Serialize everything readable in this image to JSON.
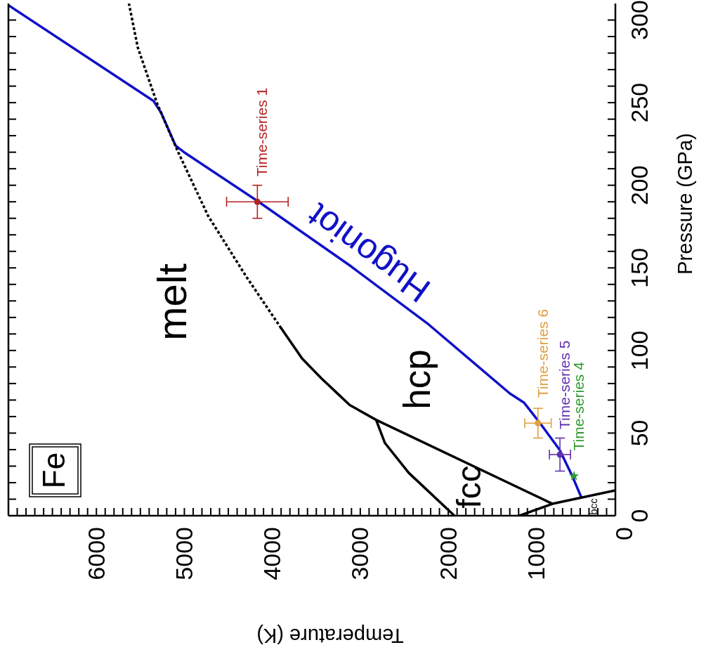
{
  "chart_data": {
    "type": "line",
    "title": "Fe",
    "xlabel": "Temperature (K)",
    "ylabel": "Pressure (GPa)",
    "xlim": [
      6900,
      0
    ],
    "ylim": [
      0,
      310
    ],
    "xticks": [
      0,
      {
        "value": 100,
        "label": null
      },
      {
        "value": 200,
        "label": null
      },
      {
        "value": 300,
        "label": null
      },
      {
        "value": 400,
        "label": null
      },
      {
        "value": 500,
        "label": null
      },
      {
        "value": 600,
        "label": null
      },
      {
        "value": 700,
        "label": null
      },
      {
        "value": 800,
        "label": null
      },
      {
        "value": 900,
        "label": null
      },
      1000,
      {
        "value": 1100,
        "label": null
      },
      {
        "value": 1200,
        "label": null
      },
      {
        "value": 1300,
        "label": null
      },
      {
        "value": 1400,
        "label": null
      },
      {
        "value": 1500,
        "label": null
      },
      {
        "value": 1600,
        "label": null
      },
      {
        "value": 1700,
        "label": null
      },
      {
        "value": 1800,
        "label": null
      },
      {
        "value": 1900,
        "label": null
      },
      2000,
      {
        "value": 2100,
        "label": null
      },
      {
        "value": 2200,
        "label": null
      },
      {
        "value": 2300,
        "label": null
      },
      {
        "value": 2400,
        "label": null
      },
      {
        "value": 2500,
        "label": null
      },
      {
        "value": 2600,
        "label": null
      },
      {
        "value": 2700,
        "label": null
      },
      {
        "value": 2800,
        "label": null
      },
      {
        "value": 2900,
        "label": null
      },
      3000,
      {
        "value": 3100,
        "label": null
      },
      {
        "value": 3200,
        "label": null
      },
      {
        "value": 3300,
        "label": null
      },
      {
        "value": 3400,
        "label": null
      },
      {
        "value": 3500,
        "label": null
      },
      {
        "value": 3600,
        "label": null
      },
      {
        "value": 3700,
        "label": null
      },
      {
        "value": 3800,
        "label": null
      },
      {
        "value": 3900,
        "label": null
      },
      4000,
      {
        "value": 4100,
        "label": null
      },
      {
        "value": 4200,
        "label": null
      },
      {
        "value": 4300,
        "label": null
      },
      {
        "value": 4400,
        "label": null
      },
      {
        "value": 4500,
        "label": null
      },
      {
        "value": 4600,
        "label": null
      },
      {
        "value": 4700,
        "label": null
      },
      {
        "value": 4800,
        "label": null
      },
      {
        "value": 4900,
        "label": null
      },
      5000,
      {
        "value": 5100,
        "label": null
      },
      {
        "value": 5200,
        "label": null
      },
      {
        "value": 5300,
        "label": null
      },
      {
        "value": 5400,
        "label": null
      },
      {
        "value": 5500,
        "label": null
      },
      {
        "value": 5600,
        "label": null
      },
      {
        "value": 5700,
        "label": null
      },
      {
        "value": 5800,
        "label": null
      },
      {
        "value": 5900,
        "label": null
      },
      6000,
      {
        "value": 6100,
        "label": null
      },
      {
        "value": 6200,
        "label": null
      },
      {
        "value": 6300,
        "label": null
      },
      {
        "value": 6400,
        "label": null
      },
      {
        "value": 6500,
        "label": null
      },
      {
        "value": 6600,
        "label": null
      },
      {
        "value": 6700,
        "label": null
      },
      {
        "value": 6800,
        "label": null
      }
    ],
    "yticks": [
      0,
      {
        "value": 10,
        "label": null
      },
      {
        "value": 20,
        "label": null
      },
      {
        "value": 30,
        "label": null
      },
      {
        "value": 40,
        "label": null
      },
      50,
      {
        "value": 60,
        "label": null
      },
      {
        "value": 70,
        "label": null
      },
      {
        "value": 80,
        "label": null
      },
      {
        "value": 90,
        "label": null
      },
      100,
      {
        "value": 110,
        "label": null
      },
      {
        "value": 120,
        "label": null
      },
      {
        "value": 130,
        "label": null
      },
      {
        "value": 140,
        "label": null
      },
      150,
      {
        "value": 160,
        "label": null
      },
      {
        "value": 170,
        "label": null
      },
      {
        "value": 180,
        "label": null
      },
      {
        "value": 190,
        "label": null
      },
      200,
      {
        "value": 210,
        "label": null
      },
      {
        "value": 220,
        "label": null
      },
      {
        "value": 230,
        "label": null
      },
      {
        "value": 240,
        "label": null
      },
      250,
      {
        "value": 260,
        "label": null
      },
      {
        "value": 270,
        "label": null
      },
      {
        "value": 280,
        "label": null
      },
      {
        "value": 290,
        "label": null
      },
      300
    ],
    "grid": false,
    "legend": false,
    "marker": "none",
    "line_style": "solid",
    "annotations": [
      "melt",
      "hcp",
      "fcc",
      "bcc"
    ],
    "series": [
      {
        "name": "Hugoniot",
        "type": "line",
        "color": "#1010c8",
        "x": [
          390,
          490,
          635,
          870,
          1040,
          1200,
          2140,
          3020,
          4070,
          4890,
          5000,
          5165,
          5250,
          6900
        ],
        "values": [
          11.5,
          24,
          40,
          57,
          68.5,
          74,
          116.5,
          151.5,
          190.5,
          219.5,
          224,
          244,
          251,
          309
        ]
      },
      {
        "type": "line",
        "color": "#000000",
        "x": [
          1830,
          2350,
          2620,
          2720,
          3020,
          3180,
          3340,
          3560,
          3800,
          null,
          2720,
          715,
          0,
          null,
          1090,
          715
        ],
        "values": [
          0,
          26,
          44,
          58,
          67,
          75,
          83,
          95,
          113.5,
          null,
          58,
          7.2,
          15.3,
          null,
          0,
          7.2
        ]
      },
      {
        "type": "line",
        "color": "#000000",
        "line_style": "dotted",
        "x": [
          3800,
          4200,
          4630,
          4970,
          5210,
          5430,
          5530
        ],
        "values": [
          113.5,
          145,
          181.5,
          220,
          249.5,
          283.5,
          310
        ]
      },
      {
        "name": "Time-series 1",
        "type": "scatter",
        "marker": "circle",
        "color": "#b22222",
        "x": [
          4070
        ],
        "values": [
          190
        ],
        "errors": [
          10
        ],
        "xerrors": [
          350
        ]
      },
      {
        "name": "Time-series 6",
        "type": "scatter",
        "marker": "circle",
        "color": "#e0a040",
        "x": [
          880
        ],
        "values": [
          56
        ],
        "errors": [
          9
        ],
        "xerrors": [
          150
        ]
      },
      {
        "name": "Time-series 5",
        "type": "scatter",
        "marker": "circle",
        "color": "#6030b0",
        "x": [
          630
        ],
        "values": [
          37
        ],
        "errors": [
          10
        ],
        "xerrors": [
          120
        ]
      },
      {
        "name": "Time-series 4",
        "type": "scatter",
        "marker": "star",
        "color": "#2e9b2e",
        "x": [
          470
        ],
        "values": [
          24
        ]
      }
    ]
  }
}
